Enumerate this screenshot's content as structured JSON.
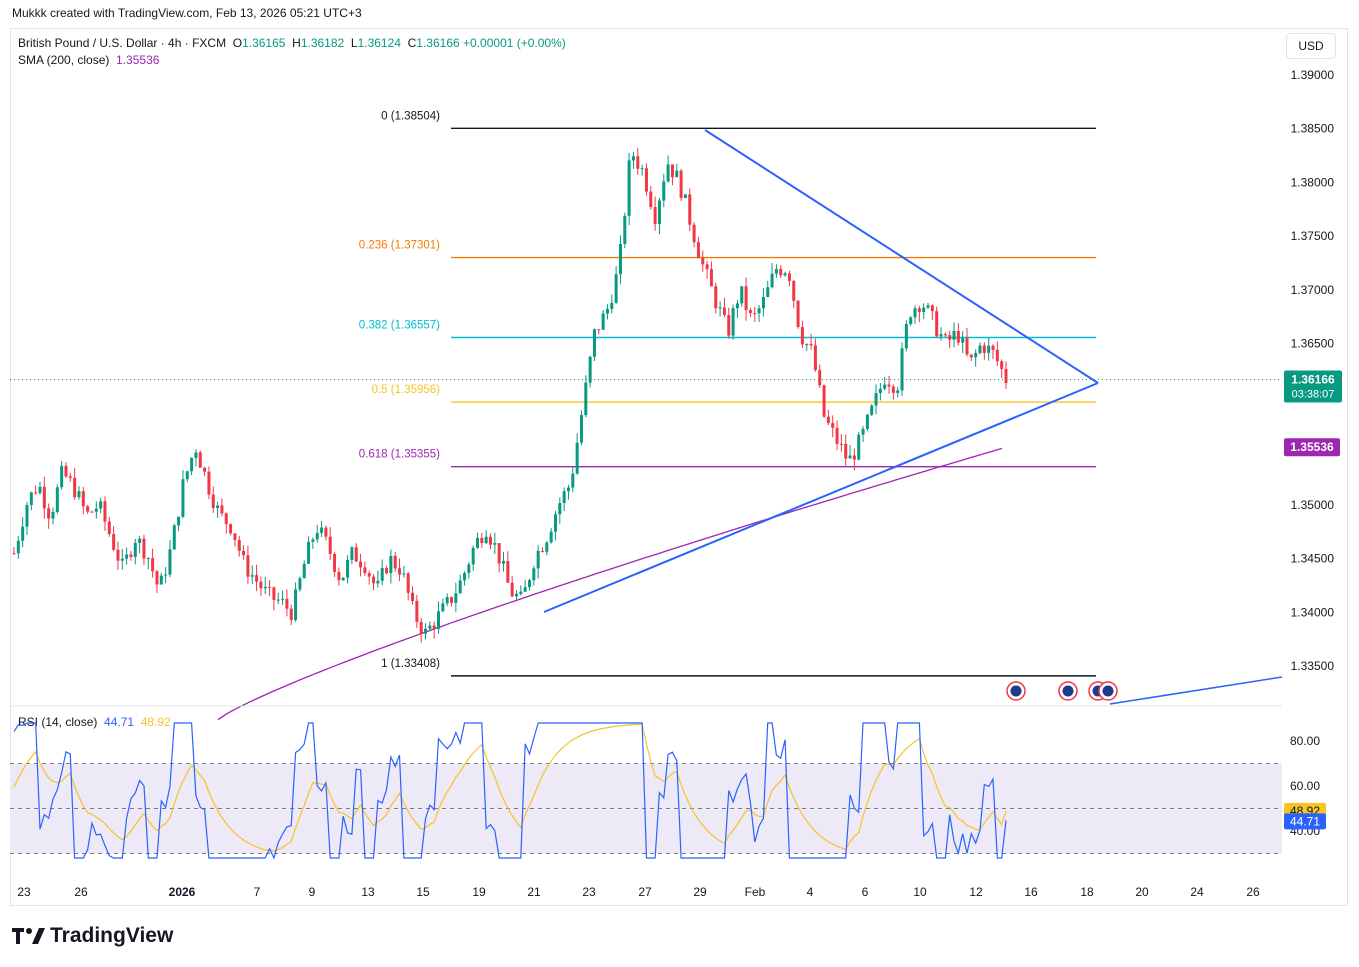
{
  "header": {
    "created_by": "Mukkk created with TradingView.com, Feb 13, 2026 05:21 UTC+3"
  },
  "legend": {
    "symbol": "British Pound / U.S. Dollar · 4h · FXCM",
    "o_label": "O",
    "o": "1.36165",
    "h_label": "H",
    "h": "1.36182",
    "l_label": "L",
    "l": "1.36124",
    "c_label": "C",
    "c": "1.36166",
    "change": "+0.00001 (+0.00%)",
    "sma_label": "SMA (200, close)",
    "sma_value": "1.35536",
    "rsi_label": "RSI (14, close)",
    "rsi_value": "44.71",
    "rsi_ma_value": "48.92"
  },
  "currency_button": "USD",
  "price_axis": {
    "ticks": [
      "1.39000",
      "1.38500",
      "1.38000",
      "1.37500",
      "1.37000",
      "1.36500",
      "1.36000",
      "1.35500",
      "1.35000",
      "1.34500",
      "1.34000",
      "1.33500"
    ],
    "last_price": "1.36166",
    "countdown": "03:38:07",
    "sma_badge": "1.35536"
  },
  "rsi_axis": {
    "ticks": [
      "80.00",
      "60.00",
      "40.00"
    ],
    "ma_badge": "48.92",
    "rsi_badge": "44.71"
  },
  "time_axis": [
    "23",
    "26",
    "2026",
    "7",
    "9",
    "13",
    "15",
    "19",
    "21",
    "23",
    "27",
    "29",
    "Feb",
    "4",
    "6",
    "10",
    "12",
    "16",
    "18",
    "20",
    "24",
    "26"
  ],
  "brand": "TradingView",
  "colors": {
    "up": "#089981",
    "down": "#f23645",
    "sma": "#9c27b0",
    "trend": "#2962ff",
    "rsi": "#2962ff",
    "rsi_ma": "#f7c325",
    "last": "#089981"
  },
  "chart_data": {
    "type": "candlestick",
    "symbol": "GBPUSD",
    "interval": "4h",
    "ylim": [
      1.332,
      1.392
    ],
    "fib_levels": [
      {
        "label": "0 (1.38504)",
        "value": 1.38504,
        "color": "#131722"
      },
      {
        "label": "0.236 (1.37301)",
        "value": 1.37301,
        "color": "#f57c00"
      },
      {
        "label": "0.382 (1.36557)",
        "value": 1.36557,
        "color": "#00bcd4"
      },
      {
        "label": "0.5 (1.35956)",
        "value": 1.35956,
        "color": "#f7c325"
      },
      {
        "label": "0.618 (1.35355)",
        "value": 1.35355,
        "color": "#9c27b0"
      },
      {
        "label": "1 (1.33408)",
        "value": 1.33408,
        "color": "#131722"
      }
    ],
    "price_path": [
      1.3455,
      1.35,
      1.352,
      1.349,
      1.353,
      1.3515,
      1.349,
      1.35,
      1.347,
      1.344,
      1.347,
      1.3455,
      1.342,
      1.346,
      1.352,
      1.3555,
      1.352,
      1.349,
      1.348,
      1.3445,
      1.343,
      1.3415,
      1.341,
      1.34,
      1.3445,
      1.348,
      1.346,
      1.343,
      1.3455,
      1.3445,
      1.342,
      1.345,
      1.344,
      1.34,
      1.338,
      1.3395,
      1.341,
      1.343,
      1.346,
      1.348,
      1.3455,
      1.342,
      1.341,
      1.345,
      1.347,
      1.35,
      1.352,
      1.359,
      1.366,
      1.368,
      1.372,
      1.383,
      1.381,
      1.377,
      1.382,
      1.38,
      1.376,
      1.372,
      1.369,
      1.366,
      1.37,
      1.367,
      1.369,
      1.372,
      1.372,
      1.366,
      1.364,
      1.358,
      1.356,
      1.354,
      1.356,
      1.359,
      1.362,
      1.361,
      1.368,
      1.369,
      1.367,
      1.365,
      1.366,
      1.363,
      1.365,
      1.364,
      1.3617
    ],
    "sma200": {
      "start": 1.33,
      "end": 1.35536
    },
    "rsi": {
      "value": 44.71,
      "ma": 48.92,
      "upper": 70,
      "lower": 30
    }
  }
}
